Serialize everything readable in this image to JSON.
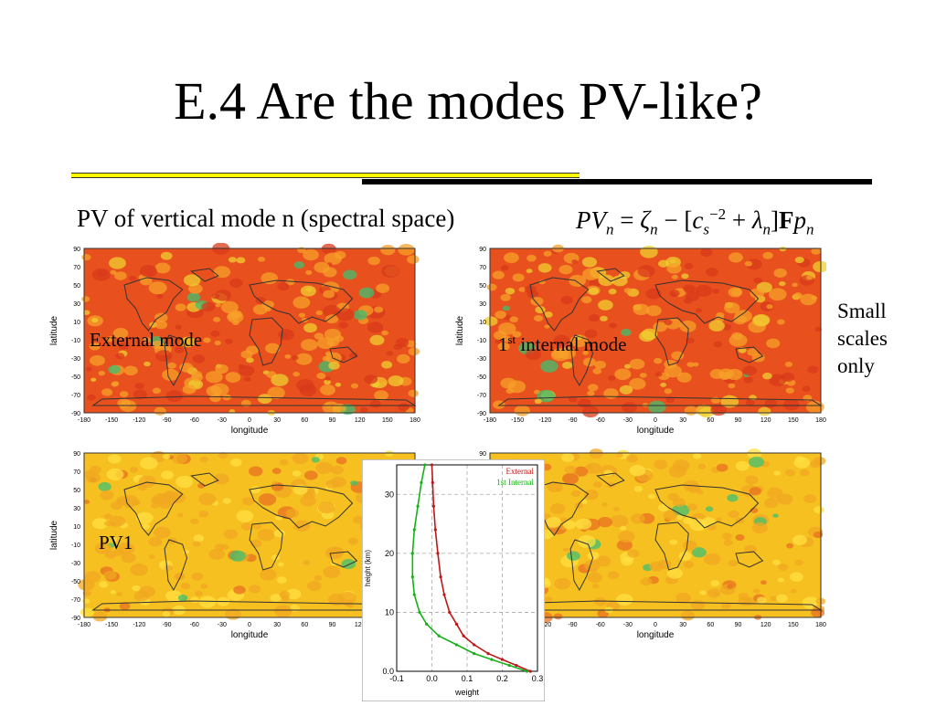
{
  "title": "E.4  Are the modes PV-like?",
  "subtitle": "PV of vertical mode n (spectral space)",
  "formula": {
    "lhs": "PV",
    "lhs_sub": "n",
    "eq": " = ",
    "zeta": "ζ",
    "zeta_sub": "n",
    "minus_bracket": " − [",
    "c": "c",
    "c_sub": "s",
    "c_sup": "−2",
    "plus": " + ",
    "lambda": "λ",
    "lambda_sub": "n",
    "close": "]",
    "F": "F",
    "p": "p",
    "p_sub": "n"
  },
  "side_note": [
    "Small",
    "scales",
    "only"
  ],
  "maps": {
    "xlabel": "longitude",
    "ylabel": "latitude",
    "xticks": [
      "-180",
      "-150",
      "-120",
      "-90",
      "-60",
      "-30",
      "0",
      "30",
      "60",
      "90",
      "120",
      "150",
      "180"
    ],
    "yticks": [
      "90",
      "70",
      "50",
      "30",
      "10",
      "-10",
      "-30",
      "-50",
      "-70",
      "-90"
    ],
    "panels": [
      {
        "label": "External mode",
        "label_sup": "",
        "label_rest": ""
      },
      {
        "label": "1",
        "label_sup": "st",
        "label_rest": " internal mode"
      },
      {
        "label": "PV1",
        "label_sup": "",
        "label_rest": ""
      },
      {
        "label": "",
        "label_sup": "",
        "label_rest": ""
      }
    ]
  },
  "colors": {
    "rule_yellow": "#ffff00",
    "map_hot": "#e8501e",
    "map_warm": "#f5c020",
    "external": "#c01818",
    "internal": "#18b018"
  },
  "chart_data": {
    "type": "line",
    "xlabel": "weight",
    "ylabel": "height (km)",
    "xlim": [
      -0.1,
      0.3
    ],
    "ylim": [
      0,
      35
    ],
    "xticks": [
      "-0.1",
      "0.0",
      "0.1",
      "0.2",
      "0.3"
    ],
    "yticks": [
      "0.0",
      "10",
      "20",
      "30"
    ],
    "grid": true,
    "legend_placement": "top-right",
    "series": [
      {
        "name": "External",
        "color": "#c01818",
        "points": [
          [
            0.28,
            0
          ],
          [
            0.24,
            1
          ],
          [
            0.2,
            2
          ],
          [
            0.16,
            3
          ],
          [
            0.12,
            4.5
          ],
          [
            0.09,
            6
          ],
          [
            0.07,
            8
          ],
          [
            0.05,
            10
          ],
          [
            0.035,
            13
          ],
          [
            0.025,
            16
          ],
          [
            0.017,
            20
          ],
          [
            0.01,
            24
          ],
          [
            0.005,
            28
          ],
          [
            0.002,
            32
          ],
          [
            0.0,
            35
          ]
        ]
      },
      {
        "name": "1st Internal",
        "color": "#18b018",
        "points": [
          [
            0.27,
            0
          ],
          [
            0.22,
            1
          ],
          [
            0.17,
            2
          ],
          [
            0.12,
            3
          ],
          [
            0.07,
            4.5
          ],
          [
            0.02,
            6
          ],
          [
            -0.015,
            8
          ],
          [
            -0.035,
            10
          ],
          [
            -0.05,
            13
          ],
          [
            -0.055,
            16
          ],
          [
            -0.055,
            20
          ],
          [
            -0.05,
            24
          ],
          [
            -0.04,
            28
          ],
          [
            -0.03,
            32
          ],
          [
            -0.02,
            35
          ]
        ]
      }
    ]
  }
}
